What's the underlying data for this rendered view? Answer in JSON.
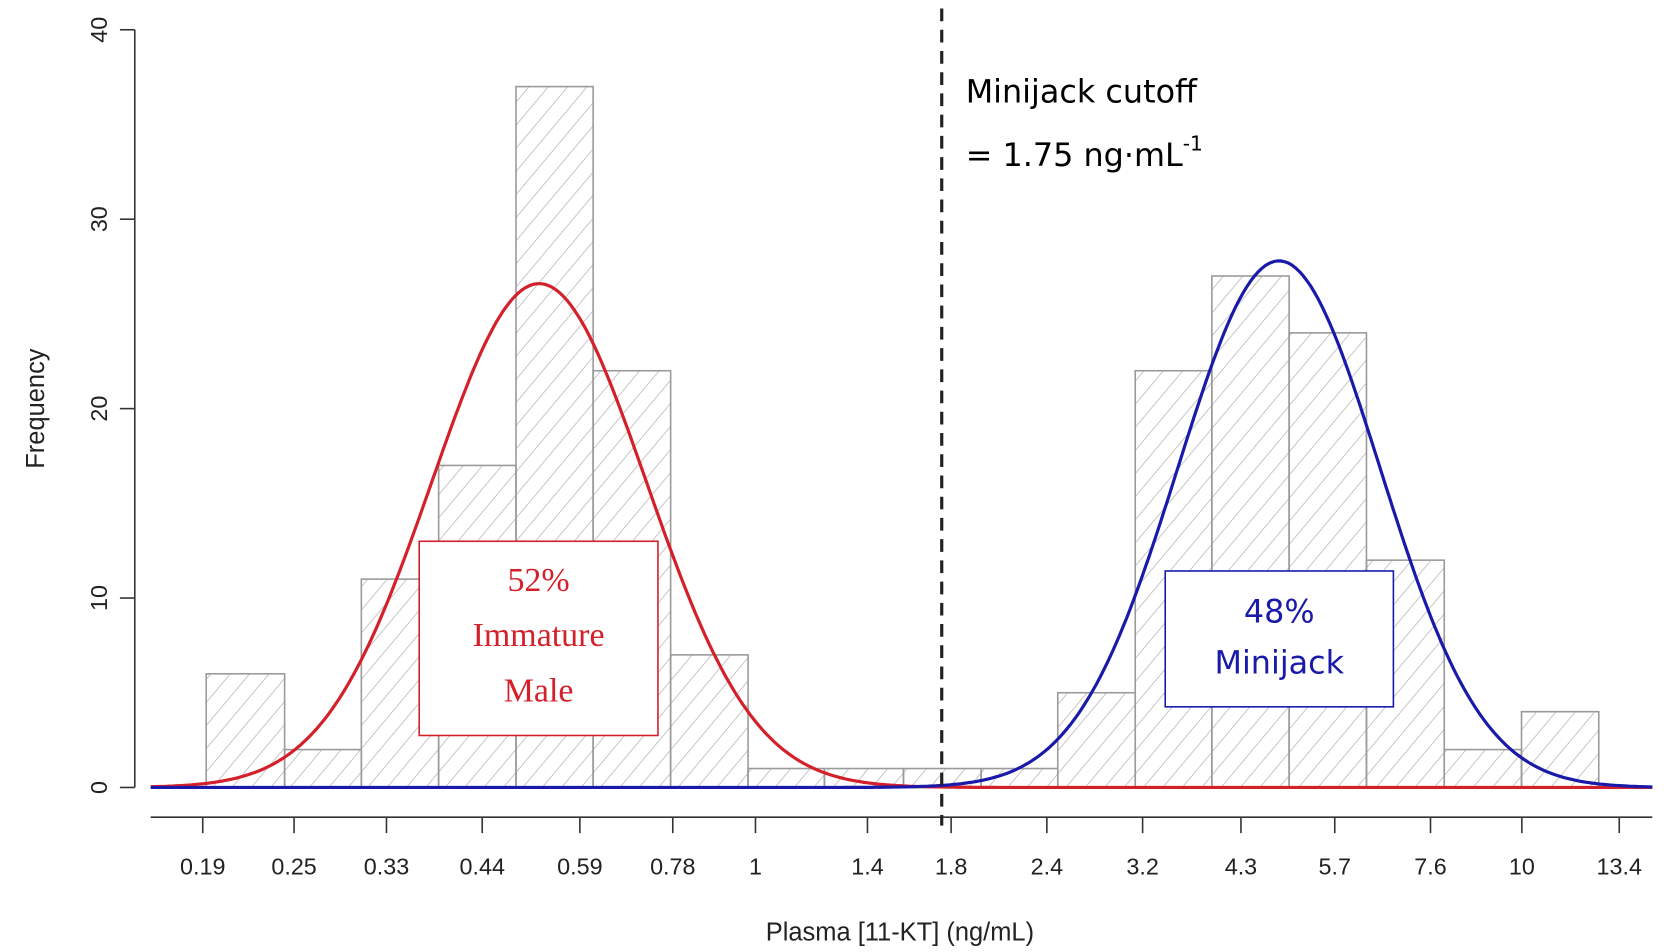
{
  "chart_data": {
    "type": "histogram",
    "x_label": "Plasma [11-KT] (ng/mL)",
    "y_label": "Frequency",
    "log_x": true,
    "xlim": [
      0.1625,
      14.8
    ],
    "ylim": [
      0,
      40
    ],
    "xticks": [
      0.19,
      0.25,
      0.33,
      0.44,
      0.59,
      0.78,
      1,
      1.4,
      1.8,
      2.4,
      3.2,
      4.3,
      5.7,
      7.6,
      10,
      13.4
    ],
    "yticks": [
      0,
      10,
      20,
      30,
      40
    ],
    "bins": [
      0.192,
      0.243,
      0.306,
      0.386,
      0.487,
      0.614,
      0.775,
      0.978,
      1.23,
      1.56,
      1.97,
      2.48,
      3.13,
      3.94,
      4.97,
      6.27,
      7.92,
      9.99,
      12.6
    ],
    "counts": [
      6,
      2,
      11,
      17,
      37,
      22,
      7,
      1,
      1,
      1,
      1,
      5,
      22,
      27,
      24,
      12,
      2,
      4
    ],
    "bar_color": "#9a9a9a",
    "cutoff": {
      "value": 1.75,
      "label": [
        "Minijack cutoff",
        "= 1.75 ng·mL"
      ],
      "label_sup": "-1"
    },
    "fits": [
      {
        "color": "#d4202a",
        "peak": 26.6,
        "mean": 0.522,
        "sd": 0.14,
        "share": 52,
        "share_label": "52%",
        "label": [
          "Immature",
          "Male"
        ]
      },
      {
        "color": "#1a1aaa",
        "peak": 27.8,
        "mean": 4.82,
        "sd": 0.132,
        "share": 48,
        "share_label": "48%",
        "label": [
          "Minijack"
        ]
      }
    ]
  }
}
